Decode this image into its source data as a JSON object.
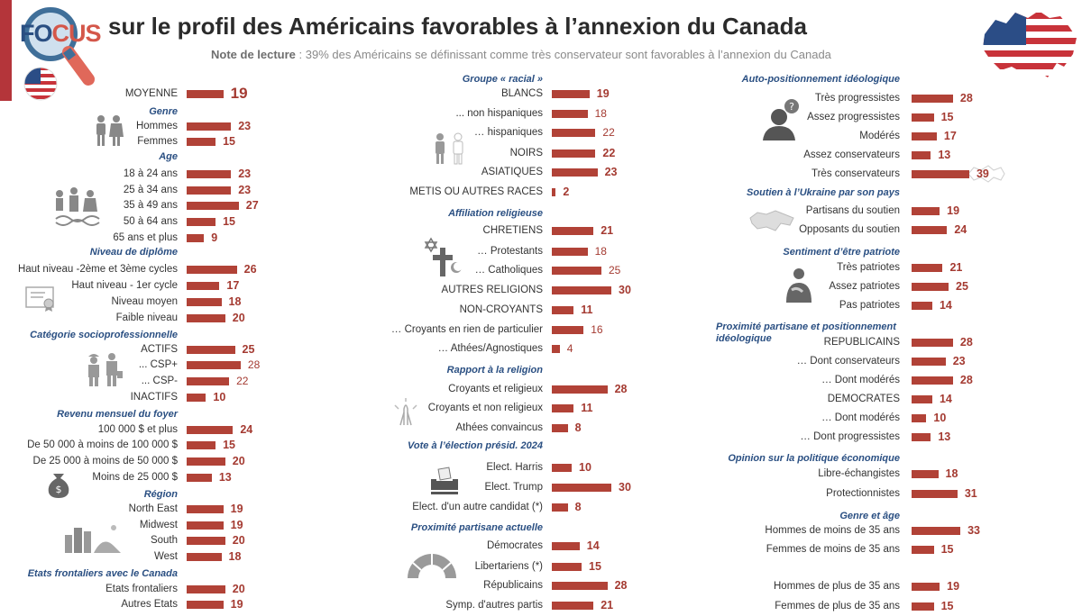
{
  "header": {
    "logo_fo": "FO",
    "logo_cus": "CUS",
    "title": "sur le profil des Américains favorables à l’annexion du Canada",
    "note_label": "Note de lecture",
    "note_text": " : 39% des Américains se définissant comme très conservateur sont favorables à l’annexion du Canada"
  },
  "colors": {
    "bar": "#b14237",
    "section": "#2a4f82",
    "value": "#a43a31"
  },
  "icons": [
    "magnifier-icon",
    "us-flag-icon",
    "us-canada-flag-map-icon",
    "people-gender-icon",
    "family-age-icon",
    "diploma-icon",
    "workers-icon",
    "money-bag-icon",
    "city-region-icon",
    "people-race-icon",
    "religion-symbols-icon",
    "praying-hands-icon",
    "ballot-box-icon",
    "hemicycle-icon",
    "question-head-icon",
    "ukraine-map-icon",
    "patriot-hand-on-heart-icon"
  ],
  "chart_data": {
    "type": "bar",
    "title": "sur le profil des Américains favorables à l’annexion du Canada",
    "unit": "%",
    "columns": [
      {
        "groups": [
          {
            "section": "",
            "rows": [
              {
                "label": "MOYENNE",
                "value": 19,
                "style": "big"
              }
            ]
          },
          {
            "section": "Genre",
            "rows": [
              {
                "label": "Hommes",
                "value": 23
              },
              {
                "label": "Femmes",
                "value": 15
              }
            ]
          },
          {
            "section": "Age",
            "rows": [
              {
                "label": "18 à 24 ans",
                "value": 23
              },
              {
                "label": "25 à 34 ans",
                "value": 23
              },
              {
                "label": "35 à 49 ans",
                "value": 27
              },
              {
                "label": "50 à 64 ans",
                "value": 15
              },
              {
                "label": "65 ans et plus",
                "value": 9
              }
            ]
          },
          {
            "section": "Niveau de diplôme",
            "rows": [
              {
                "label": "Haut niveau -2ème et 3ème cycles",
                "value": 26
              },
              {
                "label": "Haut niveau - 1er cycle",
                "value": 17
              },
              {
                "label": "Niveau moyen",
                "value": 18
              },
              {
                "label": "Faible niveau",
                "value": 20
              }
            ]
          },
          {
            "section": "Catégorie socioprofessionnelle",
            "rows": [
              {
                "label": "ACTIFS",
                "value": 25
              },
              {
                "label": "... CSP+",
                "value": 28,
                "style": "light"
              },
              {
                "label": "... CSP-",
                "value": 22,
                "style": "light"
              },
              {
                "label": "INACTIFS",
                "value": 10
              }
            ]
          },
          {
            "section": "Revenu mensuel du foyer",
            "rows": [
              {
                "label": "100 000 $ et plus",
                "value": 24
              },
              {
                "label": "De 50 000 à moins de 100 000 $",
                "value": 15
              },
              {
                "label": "De 25 000 à moins de 50 000 $",
                "value": 20
              },
              {
                "label": "Moins de 25 000 $",
                "value": 13
              }
            ]
          },
          {
            "section": "Région",
            "rows": [
              {
                "label": "North East",
                "value": 19
              },
              {
                "label": "Midwest",
                "value": 19
              },
              {
                "label": "South",
                "value": 20
              },
              {
                "label": "West",
                "value": 18
              }
            ]
          },
          {
            "section": "Etats frontaliers avec le Canada",
            "rows": [
              {
                "label": "Etats frontaliers",
                "value": 20
              },
              {
                "label": "Autres Etats",
                "value": 19
              }
            ]
          }
        ]
      },
      {
        "groups": [
          {
            "section": "Groupe « racial »",
            "rows": [
              {
                "label": "BLANCS",
                "value": 19
              },
              {
                "label": "... non hispaniques",
                "value": 18,
                "style": "light"
              },
              {
                "label": "… hispaniques",
                "value": 22,
                "style": "light"
              },
              {
                "label": "NOIRS",
                "value": 22
              },
              {
                "label": "ASIATIQUES",
                "value": 23
              },
              {
                "label": "METIS OU AUTRES RACES",
                "value": 2
              }
            ]
          },
          {
            "section": "Affiliation religieuse",
            "rows": [
              {
                "label": "CHRETIENS",
                "value": 21
              },
              {
                "label": "… Protestants",
                "value": 18,
                "style": "light"
              },
              {
                "label": "… Catholiques",
                "value": 25,
                "style": "light"
              },
              {
                "label": "AUTRES RELIGIONS",
                "value": 30
              },
              {
                "label": "NON-CROYANTS",
                "value": 11
              },
              {
                "label": "… Croyants en rien de particulier",
                "value": 16,
                "style": "light"
              },
              {
                "label": "… Athées/Agnostiques",
                "value": 4,
                "style": "light"
              }
            ]
          },
          {
            "section": "Rapport à la religion",
            "rows": [
              {
                "label": "Croyants et religieux",
                "value": 28
              },
              {
                "label": "Croyants et non religieux",
                "value": 11
              },
              {
                "label": "Athées convaincus",
                "value": 8
              }
            ]
          },
          {
            "section": "Vote à l’élection présid. 2024",
            "rows": [
              {
                "label": "Elect. Harris",
                "value": 10
              },
              {
                "label": "Elect. Trump",
                "value": 30
              },
              {
                "label": "Elect. d'un autre candidat (*)",
                "value": 8
              }
            ]
          },
          {
            "section": "Proximité partisane actuelle",
            "rows": [
              {
                "label": "Démocrates",
                "value": 14
              },
              {
                "label": "Libertariens (*)",
                "value": 15
              },
              {
                "label": "Républicains",
                "value": 28
              },
              {
                "label": "Symp. d'autres partis",
                "value": 21
              }
            ]
          }
        ]
      },
      {
        "groups": [
          {
            "section": "Auto-positionnement idéologique",
            "rows": [
              {
                "label": "Très progressistes",
                "value": 28
              },
              {
                "label": "Assez progressistes",
                "value": 15
              },
              {
                "label": "Modérés",
                "value": 17
              },
              {
                "label": "Assez conservateurs",
                "value": 13
              },
              {
                "label": "Très conservateurs",
                "value": 39,
                "style": "highlight"
              }
            ]
          },
          {
            "section": "Soutien à l’Ukraine par son pays",
            "rows": [
              {
                "label": "Partisans du soutien",
                "value": 19
              },
              {
                "label": "Opposants du soutien",
                "value": 24
              }
            ]
          },
          {
            "section": "Sentiment d’être patriote",
            "rows": [
              {
                "label": "Très patriotes",
                "value": 21
              },
              {
                "label": "Assez patriotes",
                "value": 25
              },
              {
                "label": "Pas patriotes",
                "value": 14
              }
            ]
          },
          {
            "section": "Proximité partisane et positionnement idéologique",
            "rows": [
              {
                "label": "REPUBLICAINS",
                "value": 28
              },
              {
                "label": "… Dont conservateurs",
                "value": 23
              },
              {
                "label": "… Dont modérés",
                "value": 28
              },
              {
                "label": "DEMOCRATES",
                "value": 14
              },
              {
                "label": "… Dont modérés",
                "value": 10
              },
              {
                "label": "… Dont progressistes",
                "value": 13
              }
            ]
          },
          {
            "section": "Opinion sur la politique économique",
            "rows": [
              {
                "label": "Libre-échangistes",
                "value": 18
              },
              {
                "label": "Protectionnistes",
                "value": 31
              }
            ]
          },
          {
            "section": "Genre et âge",
            "rows": [
              {
                "label": "Hommes de moins de 35 ans",
                "value": 33
              },
              {
                "label": "Femmes de moins de 35 ans",
                "value": 15
              },
              {
                "label": "Hommes de plus de 35 ans",
                "value": 19
              },
              {
                "label": "Femmes de plus de 35 ans",
                "value": 15
              }
            ]
          }
        ]
      }
    ]
  }
}
